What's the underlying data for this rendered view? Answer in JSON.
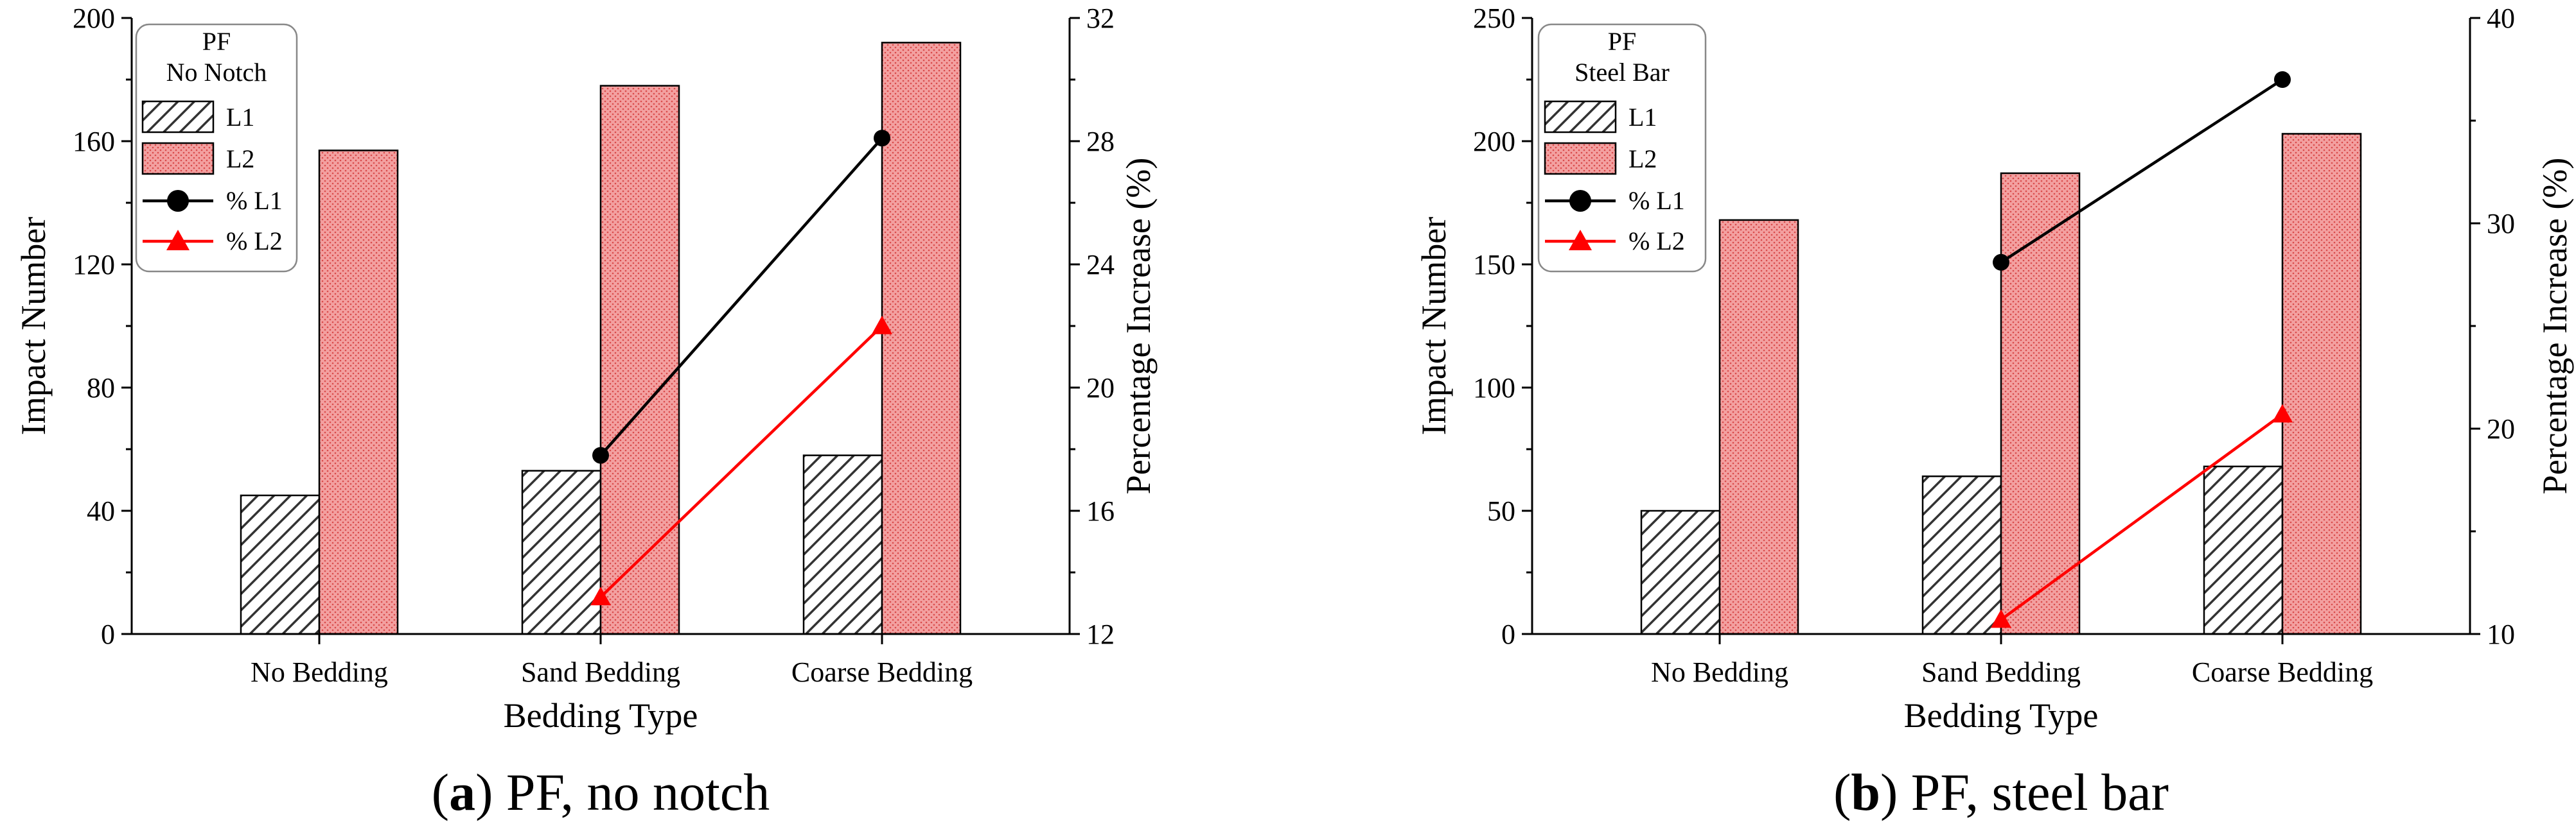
{
  "colors": {
    "l2_fill": "#f08a8a",
    "l1_fill": "#ffffff",
    "pct_l1": "#000000",
    "pct_l2": "#ff0000",
    "axis": "#000000"
  },
  "chart_data": [
    {
      "type": "bar+line",
      "title": "",
      "xlabel": "Bedding Type",
      "ylabel": "Impact Number",
      "y2label": "Percentage Increase (%)",
      "categories": [
        "No Bedding",
        "Sand Bedding",
        "Coarse Bedding"
      ],
      "ylim": [
        0,
        200
      ],
      "yticks": [
        0,
        40,
        80,
        120,
        160,
        200
      ],
      "y2lim": [
        12,
        32
      ],
      "y2ticks": [
        12,
        16,
        20,
        24,
        28,
        32
      ],
      "legend_title": [
        "PF",
        "No Notch"
      ],
      "series": [
        {
          "name": "L1",
          "kind": "bar",
          "pattern": "hatch",
          "values": [
            45,
            53,
            58
          ]
        },
        {
          "name": "L2",
          "kind": "bar",
          "pattern": "red-dots",
          "values": [
            157,
            178,
            192
          ]
        }
      ],
      "line_series": [
        {
          "name": "% L1",
          "marker": "circle",
          "color": "#000000",
          "values": [
            null,
            17.8,
            28.1
          ]
        },
        {
          "name": "% L2",
          "marker": "triangle",
          "color": "#ff0000",
          "values": [
            null,
            13.2,
            22.0
          ]
        }
      ],
      "caption_letter": "a",
      "caption_rest": " PF, no notch",
      "caption_open": "(",
      "caption_close": ")"
    },
    {
      "type": "bar+line",
      "title": "",
      "xlabel": "Bedding Type",
      "ylabel": "Impact Number",
      "y2label": "Percentage Increase (%)",
      "categories": [
        "No Bedding",
        "Sand Bedding",
        "Coarse Bedding"
      ],
      "ylim": [
        0,
        250
      ],
      "yticks": [
        0,
        50,
        100,
        150,
        200,
        250
      ],
      "y2lim": [
        10,
        40
      ],
      "y2ticks": [
        10,
        20,
        30,
        40
      ],
      "legend_title": [
        "PF",
        "Steel Bar"
      ],
      "series": [
        {
          "name": "L1",
          "kind": "bar",
          "pattern": "hatch",
          "values": [
            50,
            64,
            68
          ]
        },
        {
          "name": "L2",
          "kind": "bar",
          "pattern": "red-dots",
          "values": [
            168,
            187,
            203
          ]
        }
      ],
      "line_series": [
        {
          "name": "% L1",
          "marker": "circle",
          "color": "#000000",
          "values": [
            null,
            28.1,
            37.0
          ]
        },
        {
          "name": "% L2",
          "marker": "triangle",
          "color": "#ff0000",
          "values": [
            null,
            10.7,
            20.7
          ]
        }
      ],
      "caption_letter": "b",
      "caption_rest": " PF, steel bar",
      "caption_open": "(",
      "caption_close": ")"
    }
  ]
}
